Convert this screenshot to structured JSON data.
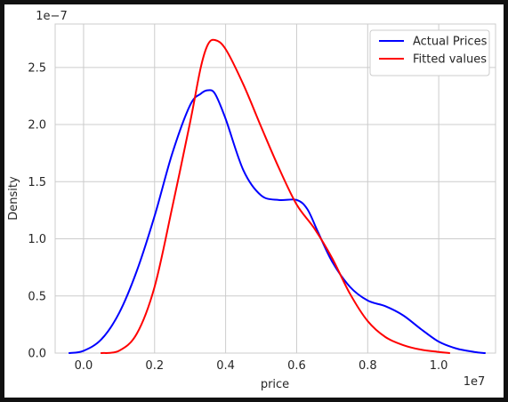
{
  "chart_data": {
    "type": "line",
    "title": "",
    "xlabel": "price",
    "ylabel": "Density",
    "x_offset_label": "1e7",
    "y_offset_label": "1e−7",
    "xlim": [
      -0.08,
      1.16
    ],
    "ylim": [
      0.0,
      2.88
    ],
    "x_ticks": [
      0.0,
      0.2,
      0.4,
      0.6,
      0.8,
      1.0
    ],
    "x_tick_labels": [
      "0.0",
      "0.2",
      "0.4",
      "0.6",
      "0.8",
      "1.0"
    ],
    "y_ticks": [
      0.0,
      0.5,
      1.0,
      1.5,
      2.0,
      2.5
    ],
    "y_tick_labels": [
      "0.0",
      "0.5",
      "1.0",
      "1.5",
      "2.0",
      "2.5"
    ],
    "grid": true,
    "legend_position": "top-right",
    "series": [
      {
        "name": "Actual Prices",
        "color": "#0000ff",
        "x": [
          -0.04,
          0.0,
          0.05,
          0.1,
          0.15,
          0.2,
          0.25,
          0.3,
          0.33,
          0.35,
          0.37,
          0.4,
          0.45,
          0.5,
          0.55,
          0.6,
          0.63,
          0.66,
          0.7,
          0.75,
          0.8,
          0.85,
          0.9,
          0.95,
          1.0,
          1.05,
          1.1,
          1.13
        ],
        "values": [
          0.0,
          0.02,
          0.12,
          0.35,
          0.72,
          1.2,
          1.75,
          2.17,
          2.27,
          2.3,
          2.27,
          2.05,
          1.6,
          1.38,
          1.34,
          1.34,
          1.26,
          1.06,
          0.8,
          0.58,
          0.46,
          0.41,
          0.33,
          0.21,
          0.1,
          0.04,
          0.01,
          0.0
        ]
      },
      {
        "name": "Fitted values",
        "color": "#ff0000",
        "x": [
          0.05,
          0.1,
          0.15,
          0.2,
          0.25,
          0.3,
          0.33,
          0.35,
          0.37,
          0.4,
          0.45,
          0.5,
          0.55,
          0.6,
          0.65,
          0.7,
          0.75,
          0.8,
          0.85,
          0.9,
          0.95,
          1.0,
          1.03
        ],
        "values": [
          0.0,
          0.02,
          0.17,
          0.58,
          1.28,
          2.02,
          2.5,
          2.7,
          2.74,
          2.66,
          2.35,
          1.98,
          1.62,
          1.3,
          1.09,
          0.83,
          0.52,
          0.28,
          0.14,
          0.07,
          0.03,
          0.01,
          0.0
        ]
      }
    ]
  }
}
